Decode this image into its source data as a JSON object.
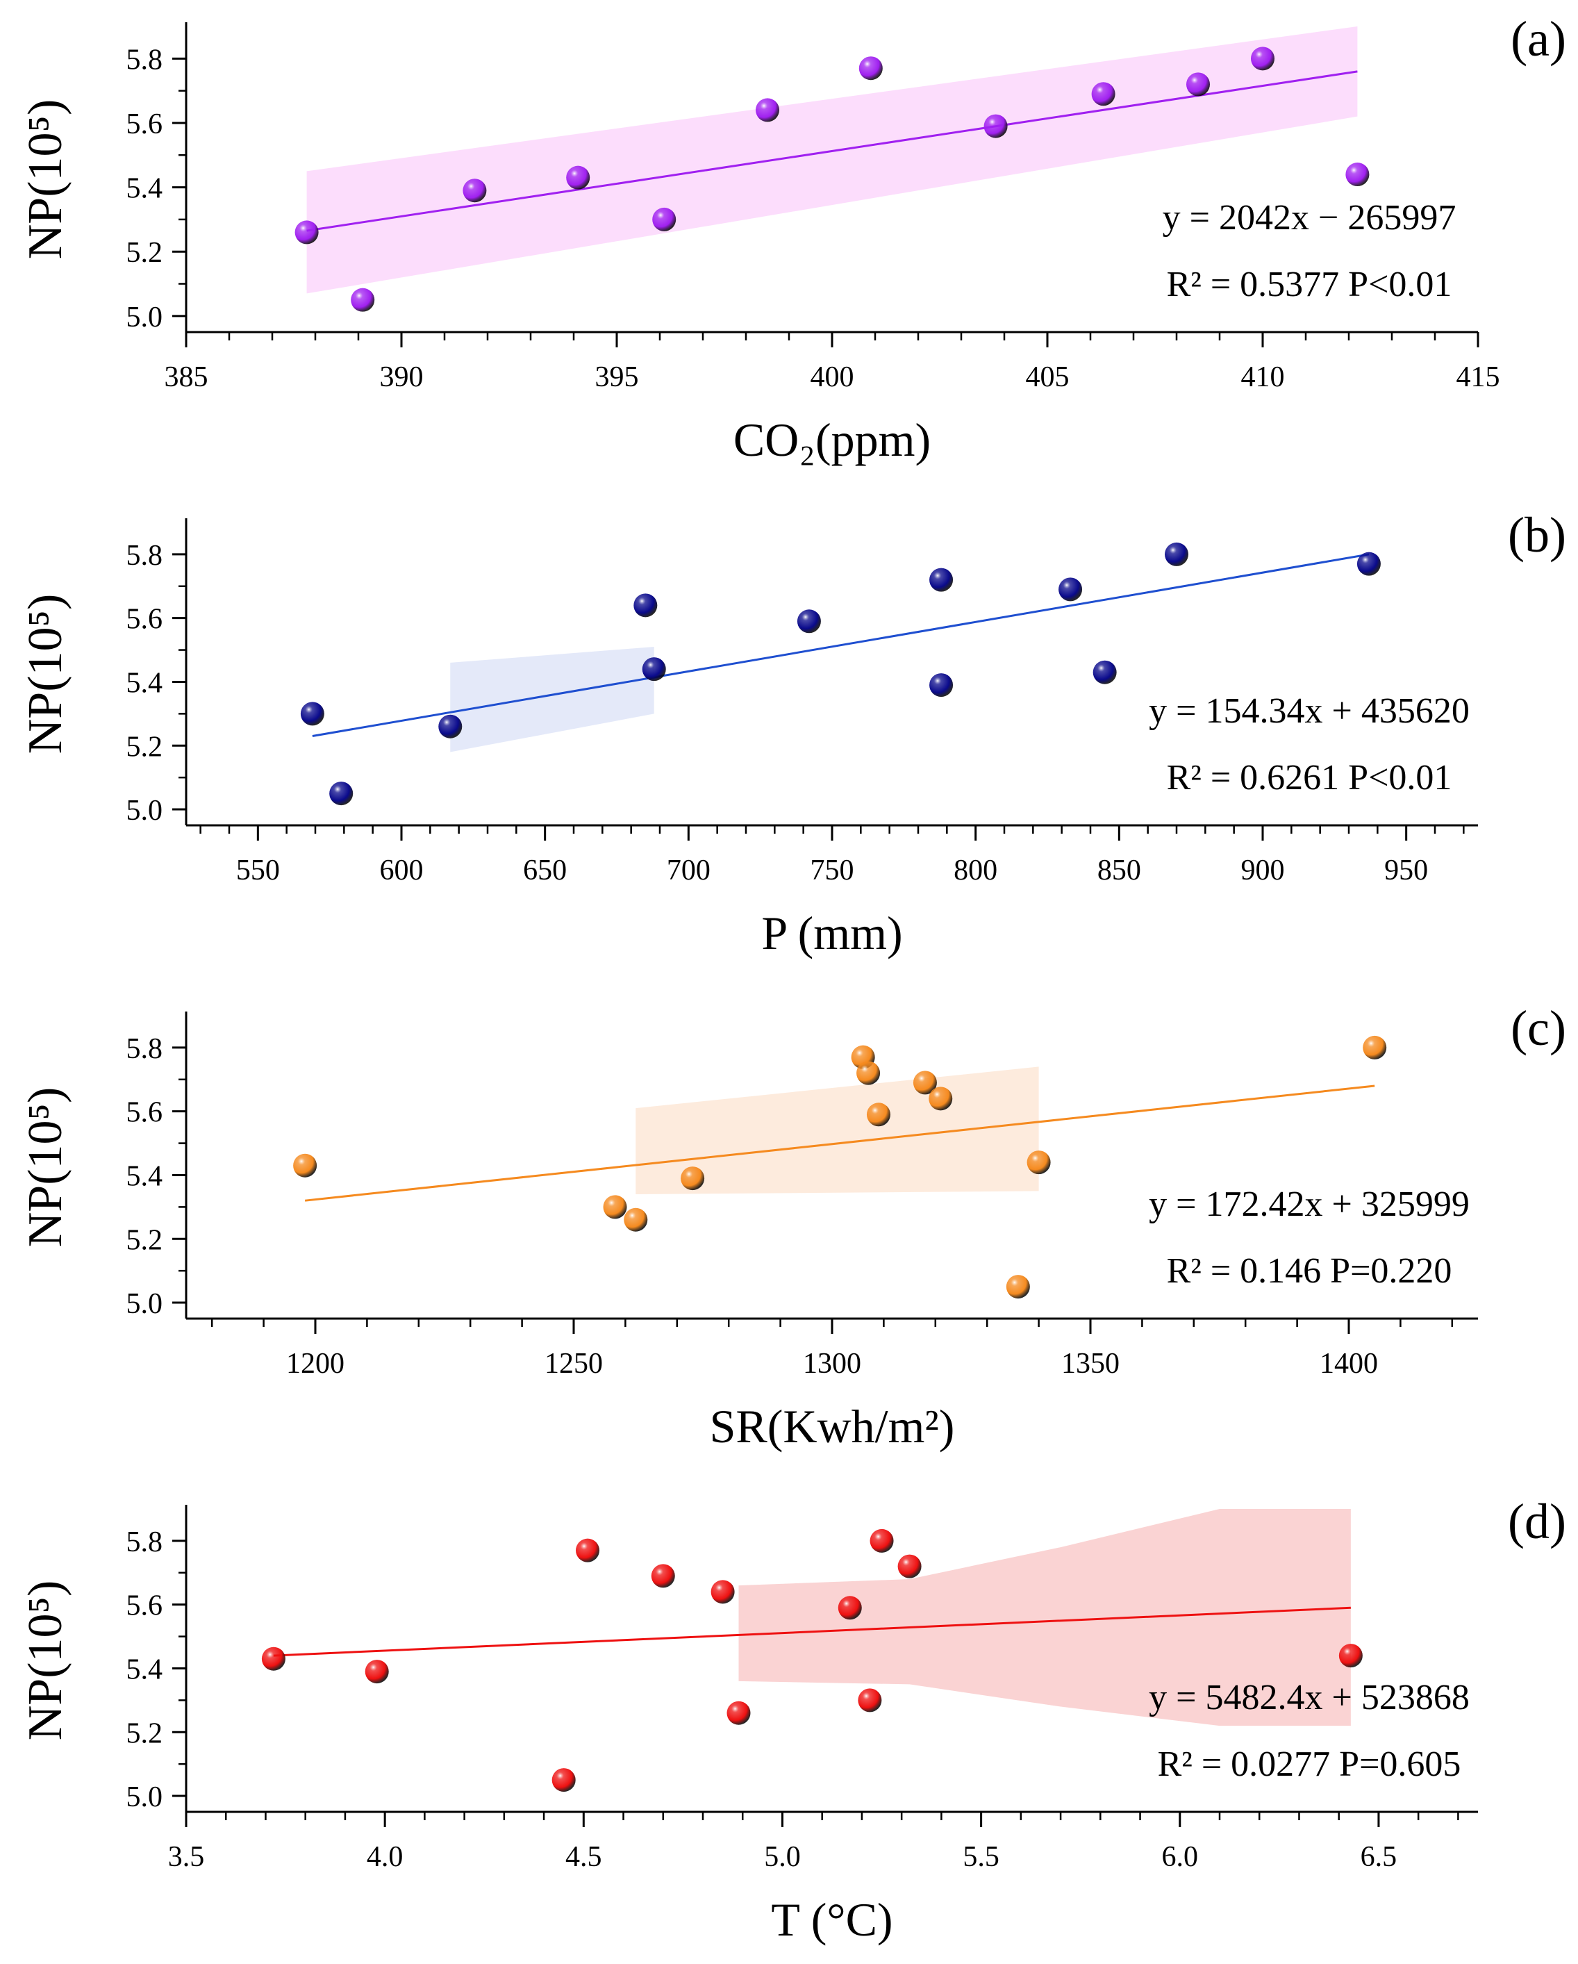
{
  "chart_data": [
    {
      "type": "scatter",
      "panel_label": "(a)",
      "ylabel": "NP(10⁵)",
      "xlabel": "CO₂(ppm)",
      "xlim": [
        385,
        415
      ],
      "ylim": [
        4.95,
        5.9
      ],
      "xticks": [
        385,
        390,
        395,
        400,
        405,
        410,
        415
      ],
      "yticks": [
        5.0,
        5.2,
        5.4,
        5.6,
        5.8
      ],
      "color": "#A020F0",
      "band_color": "#FBD5FB",
      "points": [
        {
          "x": 387.8,
          "y": 5.26
        },
        {
          "x": 389.1,
          "y": 5.05
        },
        {
          "x": 391.7,
          "y": 5.39
        },
        {
          "x": 394.1,
          "y": 5.43
        },
        {
          "x": 396.1,
          "y": 5.3
        },
        {
          "x": 398.5,
          "y": 5.64
        },
        {
          "x": 400.9,
          "y": 5.77
        },
        {
          "x": 403.8,
          "y": 5.59
        },
        {
          "x": 406.3,
          "y": 5.69
        },
        {
          "x": 408.5,
          "y": 5.72
        },
        {
          "x": 410.0,
          "y": 5.8
        },
        {
          "x": 412.2,
          "y": 5.44
        }
      ],
      "fit": {
        "x": [
          387.8,
          412.2
        ],
        "y": [
          5.265,
          5.76
        ]
      },
      "band": {
        "x": [
          387.8,
          412.2
        ],
        "upper": [
          5.45,
          5.9
        ],
        "lower": [
          5.07,
          5.62
        ]
      },
      "equation": "y = 2042x − 265997",
      "r2_text": "R² = 0.5377 P<0.01"
    },
    {
      "type": "scatter",
      "panel_label": "(b)",
      "ylabel": "NP(10⁵)",
      "xlabel": "P (mm)",
      "xlim": [
        525,
        975
      ],
      "ylim": [
        4.95,
        5.9
      ],
      "xticks": [
        550,
        600,
        650,
        700,
        750,
        800,
        850,
        900,
        950
      ],
      "yticks": [
        5.0,
        5.2,
        5.4,
        5.6,
        5.8
      ],
      "color": "#0A0A8C",
      "band_color": "#DDE3F8",
      "points": [
        {
          "x": 569,
          "y": 5.3
        },
        {
          "x": 579,
          "y": 5.05
        },
        {
          "x": 617,
          "y": 5.26
        },
        {
          "x": 685,
          "y": 5.64
        },
        {
          "x": 688,
          "y": 5.44
        },
        {
          "x": 742,
          "y": 5.59
        },
        {
          "x": 788,
          "y": 5.72
        },
        {
          "x": 788,
          "y": 5.39
        },
        {
          "x": 833,
          "y": 5.69
        },
        {
          "x": 845,
          "y": 5.43
        },
        {
          "x": 870,
          "y": 5.8
        },
        {
          "x": 937,
          "y": 5.77
        }
      ],
      "fit": {
        "x": [
          569,
          937
        ],
        "y": [
          5.23,
          5.8
        ]
      },
      "band": {
        "x": [
          617,
          688
        ],
        "upper": [
          5.46,
          5.51
        ],
        "lower": [
          5.18,
          5.3
        ]
      },
      "line_color": "#1F4FD0",
      "equation": "y = 154.34x + 435620",
      "r2_text": "R² = 0.6261 P<0.01"
    },
    {
      "type": "scatter",
      "panel_label": "(c)",
      "ylabel": "NP(10⁵)",
      "xlabel": "SR(Kwh/m²)",
      "xlim": [
        1175,
        1425
      ],
      "ylim": [
        4.95,
        5.9
      ],
      "xticks": [
        1200,
        1250,
        1300,
        1350,
        1400
      ],
      "yticks": [
        5.0,
        5.2,
        5.4,
        5.6,
        5.8
      ],
      "color": "#F58A1F",
      "band_color": "#FDE6D4",
      "points": [
        {
          "x": 1198,
          "y": 5.43
        },
        {
          "x": 1258,
          "y": 5.3
        },
        {
          "x": 1262,
          "y": 5.26
        },
        {
          "x": 1273,
          "y": 5.39
        },
        {
          "x": 1306,
          "y": 5.77
        },
        {
          "x": 1307,
          "y": 5.72
        },
        {
          "x": 1309,
          "y": 5.59
        },
        {
          "x": 1318,
          "y": 5.69
        },
        {
          "x": 1321,
          "y": 5.64
        },
        {
          "x": 1336,
          "y": 5.05
        },
        {
          "x": 1340,
          "y": 5.44
        },
        {
          "x": 1405,
          "y": 5.8
        }
      ],
      "fit": {
        "x": [
          1198,
          1405
        ],
        "y": [
          5.32,
          5.68
        ]
      },
      "band": {
        "x": [
          1262,
          1340
        ],
        "upper": [
          5.61,
          5.74
        ],
        "lower": [
          5.34,
          5.35
        ]
      },
      "equation": "y = 172.42x + 325999",
      "r2_text": "R² = 0.146 P=0.220"
    },
    {
      "type": "scatter",
      "panel_label": "(d)",
      "ylabel": "NP(10⁵)",
      "xlabel": "T (°C)",
      "xlim": [
        3.5,
        6.75
      ],
      "ylim": [
        4.95,
        5.9
      ],
      "xticks": [
        "3.5",
        "4.0",
        "4.5",
        "5.0",
        "5.5",
        "6.0",
        "6.5"
      ],
      "yticks": [
        5.0,
        5.2,
        5.4,
        5.6,
        5.8
      ],
      "color": "#EE1111",
      "band_color": "#F9C8C8",
      "points": [
        {
          "x": 3.72,
          "y": 5.43
        },
        {
          "x": 3.98,
          "y": 5.39
        },
        {
          "x": 4.45,
          "y": 5.05
        },
        {
          "x": 4.51,
          "y": 5.77
        },
        {
          "x": 4.7,
          "y": 5.69
        },
        {
          "x": 4.85,
          "y": 5.64
        },
        {
          "x": 4.89,
          "y": 5.26
        },
        {
          "x": 5.17,
          "y": 5.59
        },
        {
          "x": 5.22,
          "y": 5.3
        },
        {
          "x": 5.25,
          "y": 5.8
        },
        {
          "x": 5.32,
          "y": 5.72
        },
        {
          "x": 6.43,
          "y": 5.44
        }
      ],
      "fit": {
        "x": [
          3.72,
          6.43
        ],
        "y": [
          5.44,
          5.59
        ]
      },
      "band": {
        "x": [
          4.89,
          5.32,
          5.7,
          6.1,
          6.43
        ],
        "upper": [
          5.66,
          5.68,
          5.78,
          5.9,
          5.9
        ],
        "lower": [
          5.36,
          5.35,
          5.28,
          5.22,
          5.22
        ]
      },
      "equation": "y = 5482.4x + 523868",
      "r2_text": "R² = 0.0277  P=0.605"
    }
  ]
}
